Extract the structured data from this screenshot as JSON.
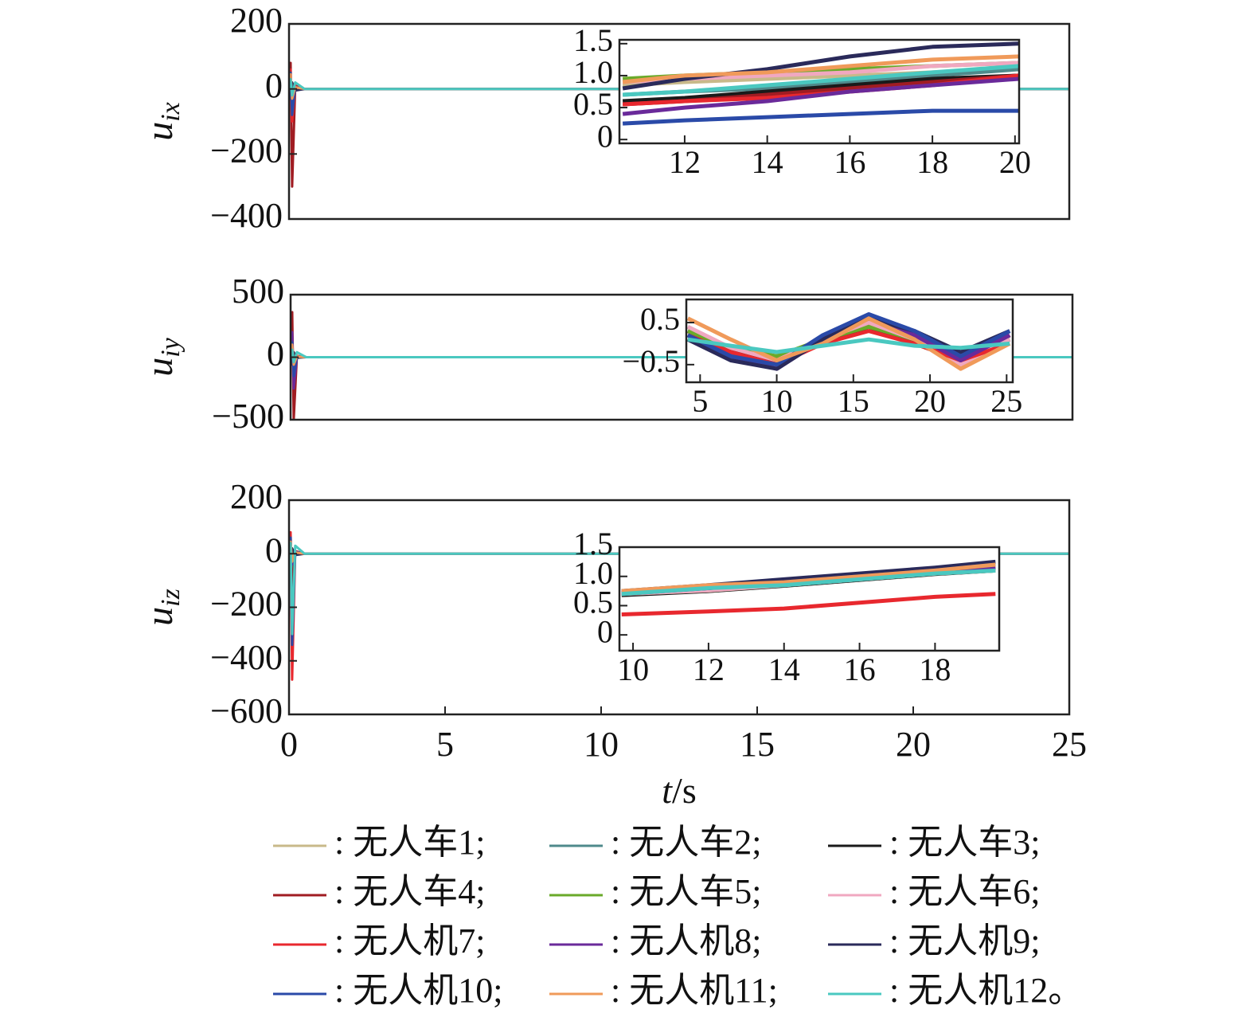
{
  "chart_data": [
    {
      "type": "line",
      "ylabel": "u",
      "ylabel_sub": "ix",
      "x": [
        0,
        0.05,
        0.1,
        0.2,
        0.5,
        25
      ],
      "xlim": [
        0,
        25
      ],
      "ylim": [
        -400,
        200
      ],
      "yticks": [
        200,
        0,
        {
          "value": -200,
          "label": "−200"
        },
        {
          "value": -400,
          "label": "−400"
        }
      ],
      "series": [
        {
          "name": ": 无人车1;",
          "color": "#c8b98a",
          "values": [
            0,
            40,
            -20,
            5,
            0,
            0
          ]
        },
        {
          "name": ": 无人车2;",
          "color": "#4f8a8b",
          "values": [
            0,
            30,
            -60,
            5,
            0,
            0
          ]
        },
        {
          "name": ": 无人车3;",
          "color": "#1a1a1a",
          "values": [
            0,
            -20,
            -10,
            2,
            0,
            0
          ]
        },
        {
          "name": ": 无人车4;",
          "color": "#a01c22",
          "values": [
            0,
            80,
            -300,
            10,
            0,
            0
          ]
        },
        {
          "name": ": 无人车5;",
          "color": "#6aaa2a",
          "values": [
            0,
            20,
            -10,
            3,
            0,
            0
          ]
        },
        {
          "name": ": 无人车6;",
          "color": "#f0a8c0",
          "values": [
            0,
            25,
            -15,
            3,
            0,
            0
          ]
        },
        {
          "name": ": 无人机7;",
          "color": "#e8282e",
          "values": [
            0,
            60,
            -100,
            8,
            0,
            0
          ]
        },
        {
          "name": ": 无人机8;",
          "color": "#6a2a9a",
          "values": [
            0,
            35,
            -40,
            4,
            0,
            0
          ]
        },
        {
          "name": ": 无人机9;",
          "color": "#2a2a5a",
          "values": [
            0,
            -30,
            20,
            -5,
            0,
            0
          ]
        },
        {
          "name": ": 无人机10;",
          "color": "#2a4aa8",
          "values": [
            0,
            50,
            -80,
            6,
            0,
            0
          ]
        },
        {
          "name": ": 无人机11;",
          "color": "#f09a5a",
          "values": [
            0,
            45,
            -30,
            5,
            0,
            0
          ]
        },
        {
          "name": ": 无人机12。",
          "color": "#4ac8c0",
          "values": [
            0,
            30,
            -20,
            20,
            0,
            0
          ]
        }
      ]
    },
    {
      "type": "line",
      "ylabel": "u",
      "ylabel_sub": "iy",
      "x": [
        0,
        0.05,
        0.1,
        0.2,
        0.5,
        25
      ],
      "xlim": [
        0,
        25
      ],
      "ylim": [
        -500,
        500
      ],
      "yticks": [
        500,
        0,
        {
          "value": -500,
          "label": "−500"
        }
      ],
      "series": [
        {
          "color": "#c8b98a",
          "values": [
            0,
            60,
            -40,
            5,
            0,
            0
          ]
        },
        {
          "color": "#4f8a8b",
          "values": [
            0,
            50,
            -80,
            5,
            0,
            0
          ]
        },
        {
          "color": "#1a1a1a",
          "values": [
            0,
            -30,
            20,
            2,
            0,
            0
          ]
        },
        {
          "color": "#a01c22",
          "values": [
            0,
            360,
            -500,
            10,
            0,
            0
          ]
        },
        {
          "color": "#6aaa2a",
          "values": [
            0,
            40,
            -20,
            3,
            0,
            0
          ]
        },
        {
          "color": "#f0a8c0",
          "values": [
            0,
            45,
            -30,
            3,
            0,
            0
          ]
        },
        {
          "color": "#e8282e",
          "values": [
            0,
            150,
            -200,
            8,
            0,
            0
          ]
        },
        {
          "color": "#6a2a9a",
          "values": [
            0,
            200,
            -250,
            4,
            0,
            0
          ]
        },
        {
          "color": "#2a2a5a",
          "values": [
            0,
            -60,
            40,
            -5,
            0,
            0
          ]
        },
        {
          "color": "#2a4aa8",
          "values": [
            0,
            120,
            -150,
            6,
            0,
            0
          ]
        },
        {
          "color": "#f09a5a",
          "values": [
            0,
            100,
            -60,
            5,
            0,
            0
          ]
        },
        {
          "color": "#4ac8c0",
          "values": [
            0,
            60,
            -40,
            40,
            0,
            0
          ]
        }
      ]
    },
    {
      "type": "line",
      "ylabel": "u",
      "ylabel_sub": "iz",
      "xlabel": [
        "t",
        "/s"
      ],
      "x": [
        0,
        0.05,
        0.1,
        0.2,
        0.5,
        25
      ],
      "xlim": [
        0,
        25
      ],
      "ylim": [
        -600,
        200
      ],
      "xticks": [
        0,
        5,
        10,
        15,
        20,
        25
      ],
      "yticks": [
        200,
        0,
        {
          "value": -200,
          "label": "−200"
        },
        {
          "value": -400,
          "label": "−400"
        },
        {
          "value": -600,
          "label": "−600"
        }
      ],
      "series": [
        {
          "color": "#c8b98a",
          "values": [
            0,
            40,
            -30,
            5,
            0,
            0
          ]
        },
        {
          "color": "#4f8a8b",
          "values": [
            0,
            50,
            -60,
            5,
            0,
            0
          ]
        },
        {
          "color": "#1a1a1a",
          "values": [
            0,
            -20,
            -10,
            2,
            0,
            0
          ]
        },
        {
          "color": "#a01c22",
          "values": [
            0,
            70,
            -150,
            10,
            0,
            0
          ]
        },
        {
          "color": "#6aaa2a",
          "values": [
            0,
            20,
            -10,
            3,
            0,
            0
          ]
        },
        {
          "color": "#f0a8c0",
          "values": [
            0,
            25,
            -15,
            3,
            0,
            0
          ]
        },
        {
          "color": "#e8282e",
          "values": [
            0,
            80,
            -470,
            10,
            0,
            0
          ]
        },
        {
          "color": "#6a2a9a",
          "values": [
            0,
            35,
            -40,
            4,
            0,
            0
          ]
        },
        {
          "color": "#2a2a5a",
          "values": [
            0,
            -30,
            20,
            -5,
            0,
            0
          ]
        },
        {
          "color": "#2a4aa8",
          "values": [
            0,
            60,
            -340,
            8,
            0,
            0
          ]
        },
        {
          "color": "#f09a5a",
          "values": [
            0,
            45,
            -30,
            5,
            0,
            0
          ]
        },
        {
          "color": "#4ac8c0",
          "values": [
            0,
            40,
            -300,
            30,
            0,
            0
          ]
        }
      ]
    },
    {
      "type": "line",
      "x": [
        10.5,
        12,
        14,
        16,
        18,
        20.1
      ],
      "xlim": [
        10.42,
        20.1
      ],
      "ylim": [
        -0.06,
        1.56
      ],
      "xticks": [
        12,
        14,
        16,
        18,
        20
      ],
      "yticks": [
        1.5,
        {
          "value": 1,
          "label": "1.0"
        },
        0.5,
        0
      ],
      "series": [
        {
          "color": "#c8b98a",
          "values": [
            0.85,
            0.9,
            0.95,
            1.0,
            1.05,
            1.1
          ]
        },
        {
          "color": "#4f8a8b",
          "values": [
            0.7,
            0.75,
            0.8,
            0.9,
            1.0,
            1.1
          ]
        },
        {
          "color": "#1a1a1a",
          "values": [
            0.6,
            0.65,
            0.75,
            0.85,
            0.95,
            1.0
          ]
        },
        {
          "color": "#a01c22",
          "values": [
            0.55,
            0.6,
            0.7,
            0.8,
            0.9,
            1.0
          ]
        },
        {
          "color": "#6aaa2a",
          "values": [
            0.95,
            1.0,
            1.05,
            1.1,
            1.15,
            1.2
          ]
        },
        {
          "color": "#f0a8c0",
          "values": [
            0.9,
            0.95,
            1.0,
            1.05,
            1.15,
            1.2
          ]
        },
        {
          "color": "#e8282e",
          "values": [
            0.55,
            0.6,
            0.65,
            0.75,
            0.85,
            1.0
          ]
        },
        {
          "color": "#6a2a9a",
          "values": [
            0.4,
            0.5,
            0.6,
            0.75,
            0.85,
            0.95
          ]
        },
        {
          "color": "#2a2a5a",
          "values": [
            0.8,
            0.95,
            1.1,
            1.3,
            1.45,
            1.5
          ]
        },
        {
          "color": "#2a4aa8",
          "values": [
            0.25,
            0.3,
            0.35,
            0.4,
            0.45,
            0.45
          ]
        },
        {
          "color": "#f09a5a",
          "values": [
            0.9,
            1.0,
            1.05,
            1.15,
            1.25,
            1.3
          ]
        },
        {
          "color": "#4ac8c0",
          "values": [
            0.7,
            0.75,
            0.85,
            0.95,
            1.05,
            1.15
          ]
        }
      ]
    },
    {
      "type": "line",
      "x": [
        4.2,
        7,
        10,
        13,
        16,
        19,
        22,
        25.2
      ],
      "xlim": [
        4.1,
        25.4
      ],
      "ylim": [
        -0.92,
        1.05
      ],
      "xticks": [
        5,
        10,
        15,
        20,
        25
      ],
      "yticks": [
        0.5,
        {
          "value": -0.5,
          "label": "−0.5"
        }
      ],
      "series": [
        {
          "color": "#c8b98a",
          "values": [
            0.2,
            -0.1,
            -0.3,
            0.1,
            0.4,
            0.1,
            -0.3,
            0.1
          ]
        },
        {
          "color": "#4f8a8b",
          "values": [
            0.3,
            -0.1,
            -0.4,
            0.1,
            0.5,
            0.1,
            -0.4,
            0.1
          ]
        },
        {
          "color": "#1a1a1a",
          "values": [
            0.1,
            -0.2,
            -0.4,
            0.0,
            0.4,
            0.0,
            -0.4,
            0.1
          ]
        },
        {
          "color": "#a01c22",
          "values": [
            0.3,
            -0.2,
            -0.5,
            0.1,
            0.5,
            0.1,
            -0.5,
            0.2
          ]
        },
        {
          "color": "#6aaa2a",
          "values": [
            0.3,
            -0.1,
            -0.3,
            0.1,
            0.4,
            0.1,
            -0.3,
            0.1
          ]
        },
        {
          "color": "#f0a8c0",
          "values": [
            0.4,
            -0.1,
            -0.4,
            0.1,
            0.5,
            0.1,
            -0.5,
            0.1
          ]
        },
        {
          "color": "#e8282e",
          "values": [
            0.2,
            -0.2,
            -0.5,
            0.0,
            0.3,
            0.0,
            -0.4,
            0.0
          ]
        },
        {
          "color": "#6a2a9a",
          "values": [
            0.2,
            -0.3,
            -0.6,
            0.1,
            0.6,
            0.2,
            -0.4,
            0.2
          ]
        },
        {
          "color": "#2a2a5a",
          "values": [
            0.1,
            -0.4,
            -0.6,
            0.1,
            0.6,
            0.3,
            -0.2,
            0.3
          ]
        },
        {
          "color": "#2a4aa8",
          "values": [
            0.2,
            -0.3,
            -0.5,
            0.2,
            0.7,
            0.3,
            -0.3,
            0.3
          ]
        },
        {
          "color": "#f09a5a",
          "values": [
            0.6,
            0.1,
            -0.4,
            0.0,
            0.6,
            0.1,
            -0.6,
            0.0
          ]
        },
        {
          "color": "#4ac8c0",
          "values": [
            0.1,
            -0.05,
            -0.2,
            -0.05,
            0.1,
            -0.05,
            -0.1,
            0.0
          ]
        }
      ]
    },
    {
      "type": "line",
      "x": [
        9.7,
        12,
        14,
        16,
        18,
        19.6
      ],
      "xlim": [
        9.64,
        19.7
      ],
      "ylim": [
        -0.27,
        1.5
      ],
      "xticks": [
        10,
        12,
        14,
        16,
        18
      ],
      "yticks": [
        1.5,
        {
          "value": 1,
          "label": "1.0"
        },
        0.5,
        0
      ],
      "series": [
        {
          "color": "#c8b98a",
          "values": [
            0.7,
            0.75,
            0.85,
            0.95,
            1.05,
            1.1
          ]
        },
        {
          "color": "#4f8a8b",
          "values": [
            0.7,
            0.78,
            0.86,
            0.96,
            1.06,
            1.12
          ]
        },
        {
          "color": "#1a1a1a",
          "values": [
            0.68,
            0.75,
            0.84,
            0.94,
            1.04,
            1.1
          ]
        },
        {
          "color": "#a01c22",
          "values": [
            0.72,
            0.78,
            0.86,
            0.96,
            1.06,
            1.12
          ]
        },
        {
          "color": "#6aaa2a",
          "values": [
            0.7,
            0.76,
            0.85,
            0.95,
            1.05,
            1.1
          ]
        },
        {
          "color": "#f0a8c0",
          "values": [
            0.7,
            0.76,
            0.85,
            0.95,
            1.05,
            1.1
          ]
        },
        {
          "color": "#e8282e",
          "values": [
            0.35,
            0.4,
            0.45,
            0.55,
            0.65,
            0.7
          ]
        },
        {
          "color": "#6a2a9a",
          "values": [
            0.72,
            0.8,
            0.88,
            0.98,
            1.08,
            1.15
          ]
        },
        {
          "color": "#2a2a5a",
          "values": [
            0.75,
            0.85,
            0.95,
            1.05,
            1.15,
            1.25
          ]
        },
        {
          "color": "#2a4aa8",
          "values": [
            0.7,
            0.8,
            0.9,
            1.0,
            1.1,
            1.2
          ]
        },
        {
          "color": "#f09a5a",
          "values": [
            0.75,
            0.85,
            0.9,
            1.0,
            1.1,
            1.2
          ]
        },
        {
          "color": "#4ac8c0",
          "values": [
            0.7,
            0.8,
            0.85,
            0.95,
            1.05,
            1.1
          ]
        }
      ]
    }
  ]
}
